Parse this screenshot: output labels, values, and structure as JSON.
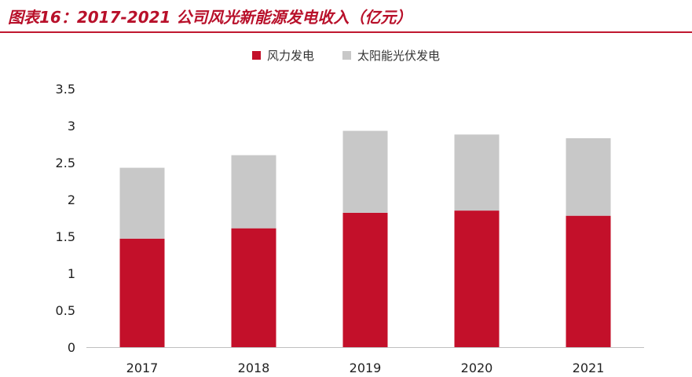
{
  "header": {
    "title": "图表16：2017-2021 公司风光新能源发电收入（亿元）"
  },
  "colors": {
    "accent": "#c0182f",
    "wind": "#c3102a",
    "solar": "#c8c8c8",
    "axis": "#bfbfbf"
  },
  "chart_data": {
    "type": "bar",
    "stacked": true,
    "title": "2017-2021 公司风光新能源发电收入（亿元）",
    "categories": [
      "2017",
      "2018",
      "2019",
      "2020",
      "2021"
    ],
    "series": [
      {
        "name": "风力发电",
        "values": [
          1.47,
          1.61,
          1.82,
          1.85,
          1.78
        ]
      },
      {
        "name": "太阳能光伏发电",
        "values": [
          0.96,
          0.99,
          1.11,
          1.03,
          1.05
        ]
      }
    ],
    "ylim": [
      0,
      3.5
    ],
    "yticks": [
      "0",
      "0.5",
      "1",
      "1.5",
      "2",
      "2.5",
      "3",
      "3.5"
    ],
    "xlabel": "",
    "ylabel": "",
    "grid": false,
    "legend_position": "top-center"
  }
}
